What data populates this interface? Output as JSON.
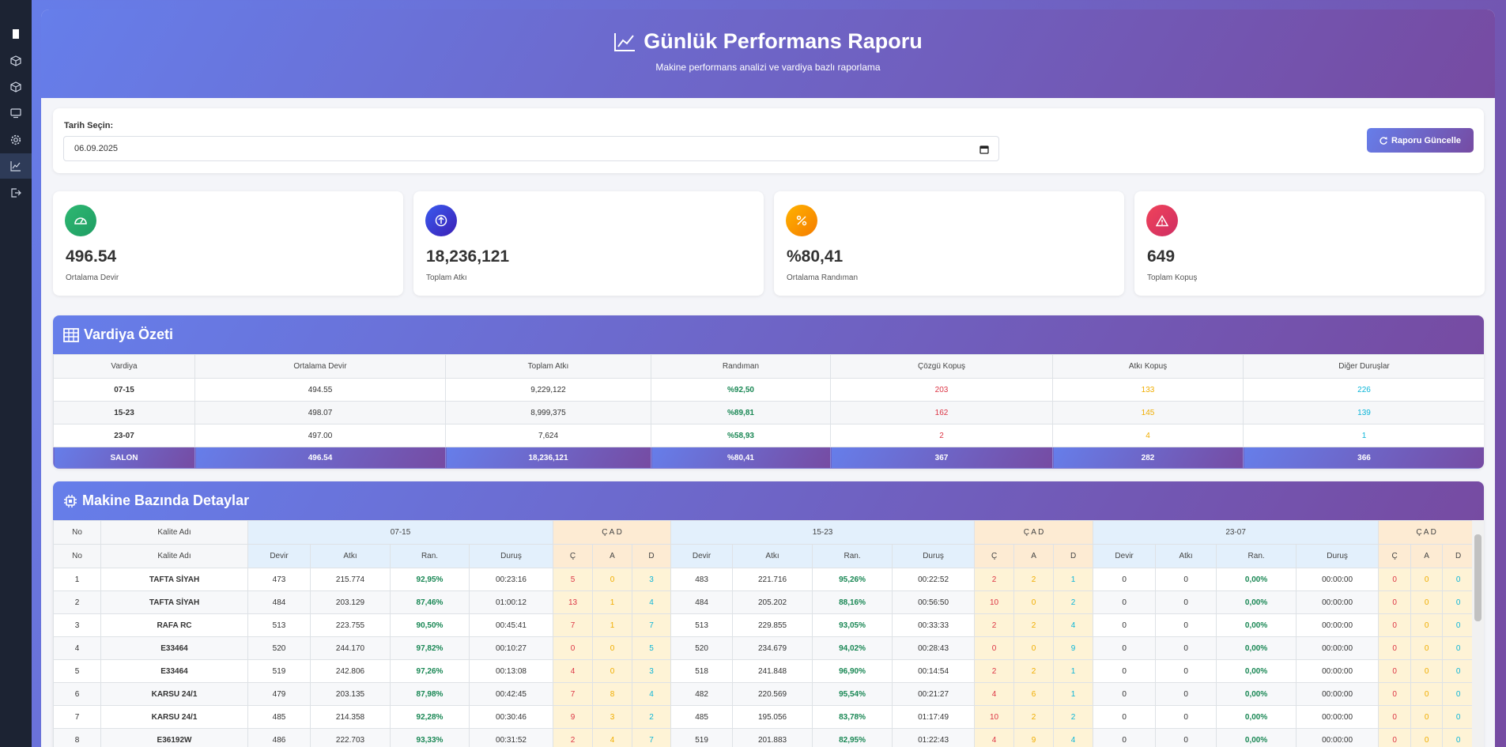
{
  "header": {
    "title": "Günlük Performans Raporu",
    "subtitle": "Makine performans analizi ve vardiya bazlı raporlama"
  },
  "date_filter": {
    "label": "Tarih Seçin:",
    "value": "06.09.2025",
    "button": "Raporu Güncelle"
  },
  "stats": [
    {
      "value": "496.54",
      "label": "Ortalama Devir"
    },
    {
      "value": "18,236,121",
      "label": "Toplam Atkı"
    },
    {
      "value": "%80,41",
      "label": "Ortalama Randıman"
    },
    {
      "value": "649",
      "label": "Toplam Kopuş"
    }
  ],
  "shift_summary": {
    "title": "Vardiya Özeti",
    "columns": [
      "Vardiya",
      "Ortalama Devir",
      "Toplam Atkı",
      "Randıman",
      "Çözgü Kopuş",
      "Atkı Kopuş",
      "Diğer Duruşlar"
    ],
    "rows": [
      [
        "07-15",
        "494.55",
        "9,229,122",
        "%92,50",
        "203",
        "133",
        "226"
      ],
      [
        "15-23",
        "498.07",
        "8,999,375",
        "%89,81",
        "162",
        "145",
        "139"
      ],
      [
        "23-07",
        "497.00",
        "7,624",
        "%58,93",
        "2",
        "4",
        "1"
      ]
    ],
    "total": [
      "SALON",
      "496.54",
      "18,236,121",
      "%80,41",
      "367",
      "282",
      "366"
    ]
  },
  "machine_details": {
    "title": "Makine Bazında Detaylar",
    "group_headers": [
      "No",
      "Kalite Adı",
      "07-15",
      "Ç A D",
      "15-23",
      "Ç A D",
      "23-07",
      "Ç A D"
    ],
    "columns": [
      "No",
      "Kalite Adı",
      "Devir",
      "Atkı",
      "Ran.",
      "Duruş",
      "Ç",
      "A",
      "D",
      "Devir",
      "Atkı",
      "Ran.",
      "Duruş",
      "Ç",
      "A",
      "D",
      "Devir",
      "Atkı",
      "Ran.",
      "Duruş",
      "Ç",
      "A",
      "D"
    ],
    "rows": [
      [
        "1",
        "TAFTA SİYAH",
        "473",
        "215.774",
        "92,95%",
        "00:23:16",
        "5",
        "0",
        "3",
        "483",
        "221.716",
        "95,26%",
        "00:22:52",
        "2",
        "2",
        "1",
        "0",
        "0",
        "0,00%",
        "00:00:00",
        "0",
        "0",
        "0"
      ],
      [
        "2",
        "TAFTA SİYAH",
        "484",
        "203.129",
        "87,46%",
        "01:00:12",
        "13",
        "1",
        "4",
        "484",
        "205.202",
        "88,16%",
        "00:56:50",
        "10",
        "0",
        "2",
        "0",
        "0",
        "0,00%",
        "00:00:00",
        "0",
        "0",
        "0"
      ],
      [
        "3",
        "RAFA RC",
        "513",
        "223.755",
        "90,50%",
        "00:45:41",
        "7",
        "1",
        "7",
        "513",
        "229.855",
        "93,05%",
        "00:33:33",
        "2",
        "2",
        "4",
        "0",
        "0",
        "0,00%",
        "00:00:00",
        "0",
        "0",
        "0"
      ],
      [
        "4",
        "E33464",
        "520",
        "244.170",
        "97,82%",
        "00:10:27",
        "0",
        "0",
        "5",
        "520",
        "234.679",
        "94,02%",
        "00:28:43",
        "0",
        "0",
        "9",
        "0",
        "0",
        "0,00%",
        "00:00:00",
        "0",
        "0",
        "0"
      ],
      [
        "5",
        "E33464",
        "519",
        "242.806",
        "97,26%",
        "00:13:08",
        "4",
        "0",
        "3",
        "518",
        "241.848",
        "96,90%",
        "00:14:54",
        "2",
        "2",
        "1",
        "0",
        "0",
        "0,00%",
        "00:00:00",
        "0",
        "0",
        "0"
      ],
      [
        "6",
        "KARSU 24/1",
        "479",
        "203.135",
        "87,98%",
        "00:42:45",
        "7",
        "8",
        "4",
        "482",
        "220.569",
        "95,54%",
        "00:21:27",
        "4",
        "6",
        "1",
        "0",
        "0",
        "0,00%",
        "00:00:00",
        "0",
        "0",
        "0"
      ],
      [
        "7",
        "KARSU 24/1",
        "485",
        "214.358",
        "92,28%",
        "00:30:46",
        "9",
        "3",
        "2",
        "485",
        "195.056",
        "83,78%",
        "01:17:49",
        "10",
        "2",
        "2",
        "0",
        "0",
        "0,00%",
        "00:00:00",
        "0",
        "0",
        "0"
      ],
      [
        "8",
        "E36192W",
        "486",
        "222.703",
        "93,33%",
        "00:31:52",
        "2",
        "4",
        "7",
        "519",
        "201.883",
        "82,95%",
        "01:22:43",
        "4",
        "9",
        "4",
        "0",
        "0",
        "0,00%",
        "00:00:00",
        "0",
        "0",
        "0"
      ]
    ]
  }
}
